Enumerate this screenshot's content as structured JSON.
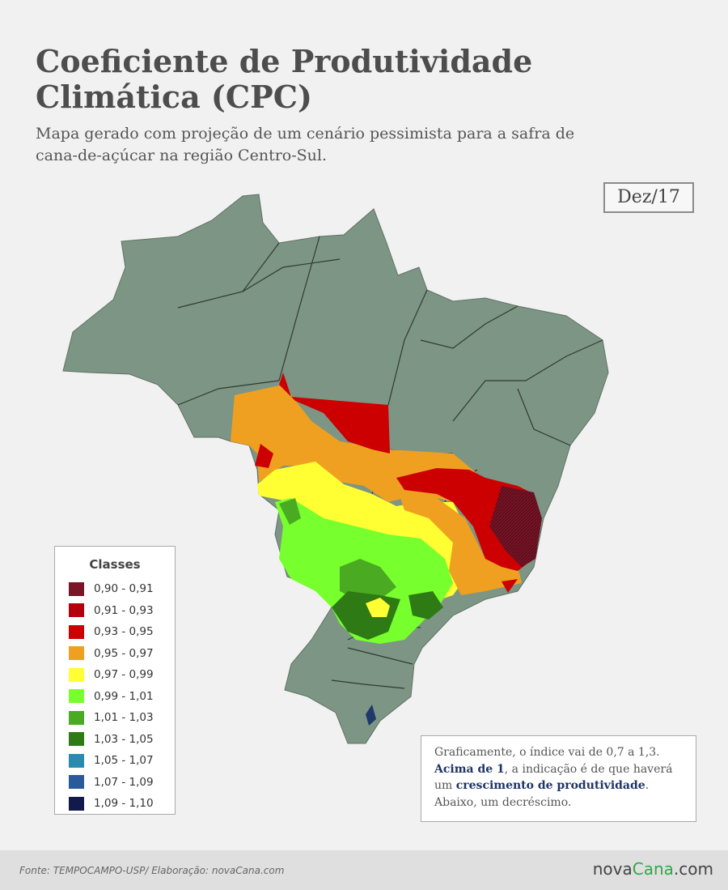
{
  "header": {
    "title": "Coeficiente de Produtividade Climática (CPC)",
    "subtitle": "Mapa gerado com projeção de um cenário pessimista para a safra de cana-de-açúcar na região Centro-Sul.",
    "date": "Dez/17"
  },
  "legend": {
    "title": "Classes",
    "items": [
      {
        "label": "0,90 - 0,91",
        "color": "#7a1426"
      },
      {
        "label": "0,91 - 0,93",
        "color": "#b3000c"
      },
      {
        "label": "0,93 - 0,95",
        "color": "#cc0000"
      },
      {
        "label": "0,95 - 0,97",
        "color": "#f0a020"
      },
      {
        "label": "0,97 - 0,99",
        "color": "#ffff33"
      },
      {
        "label": "0,99 - 1,01",
        "color": "#77ff2e"
      },
      {
        "label": "1,01 - 1,03",
        "color": "#4aaa22"
      },
      {
        "label": "1,03 - 1,05",
        "color": "#2e7a14"
      },
      {
        "label": "1,05 - 1,07",
        "color": "#2a8bb0"
      },
      {
        "label": "1,07 - 1,09",
        "color": "#2a5a9a"
      },
      {
        "label": "1,09 - 1,10",
        "color": "#111a4a"
      }
    ]
  },
  "note": {
    "line1": "Graficamente, o índice vai de 0,7 a 1,3.",
    "emph1": "Acima de 1",
    "mid": ", a indicação é de que haverá um ",
    "emph2": "crescimento de produtividade",
    "end": ".",
    "line3": "Abaixo, um decréscimo."
  },
  "footer": {
    "source": "Fonte: TEMPOCAMPO-USP/ Elaboração: novaCana.com",
    "brand_main": "nova",
    "brand_accent": "Cana",
    "brand_suffix": ".com"
  },
  "map": {
    "land_color": "#7d9585"
  }
}
